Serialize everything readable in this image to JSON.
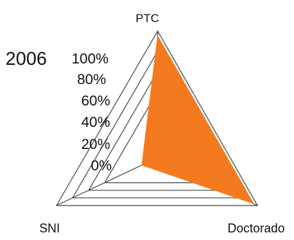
{
  "chart_data": {
    "type": "radar",
    "title": "2006",
    "axes": [
      "PTC",
      "Doctorado",
      "SNI"
    ],
    "tick_labels": [
      "100%",
      "80%",
      "60%",
      "40%",
      "20%",
      "0%"
    ],
    "rlim": [
      0,
      100
    ],
    "series": [
      {
        "values": [
          96,
          96,
          15
        ]
      }
    ],
    "colors": {
      "fill": "#F47A20",
      "grid": "#444444"
    }
  }
}
